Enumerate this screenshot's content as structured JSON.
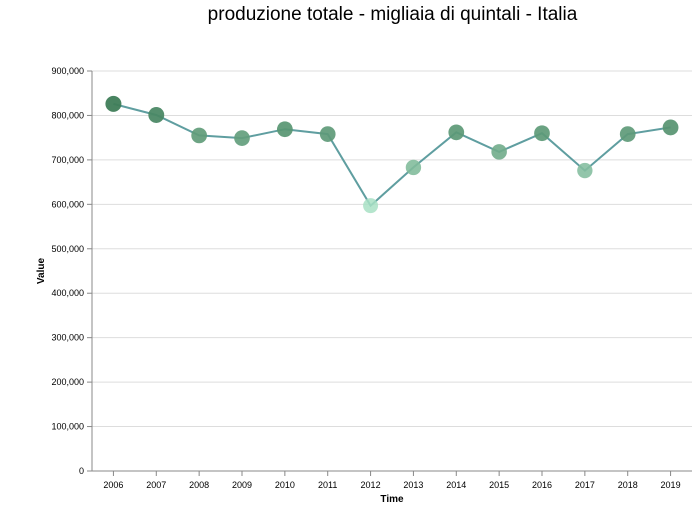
{
  "chart_data": {
    "type": "line",
    "title": "produzione totale - migliaia di quintali - Italia",
    "xlabel": "Time",
    "ylabel": "Value",
    "x": [
      "2006",
      "2007",
      "2008",
      "2009",
      "2010",
      "2011",
      "2012",
      "2013",
      "2014",
      "2015",
      "2016",
      "2017",
      "2018",
      "2019"
    ],
    "series": [
      {
        "values": [
          826000,
          801000,
          755000,
          749000,
          769000,
          758000,
          597000,
          683000,
          762000,
          718000,
          760000,
          676000,
          758000,
          773000
        ]
      }
    ],
    "ylim": [
      0,
      900000
    ],
    "yticks": [
      "0",
      "100,000",
      "200,000",
      "300,000",
      "400,000",
      "500,000",
      "600,000",
      "700,000",
      "800,000",
      "900,000"
    ],
    "grid": true,
    "colors": {
      "line": "#5f9ea0",
      "point_dark": "#3f7d58",
      "point_light": "#a8e0c4"
    }
  }
}
